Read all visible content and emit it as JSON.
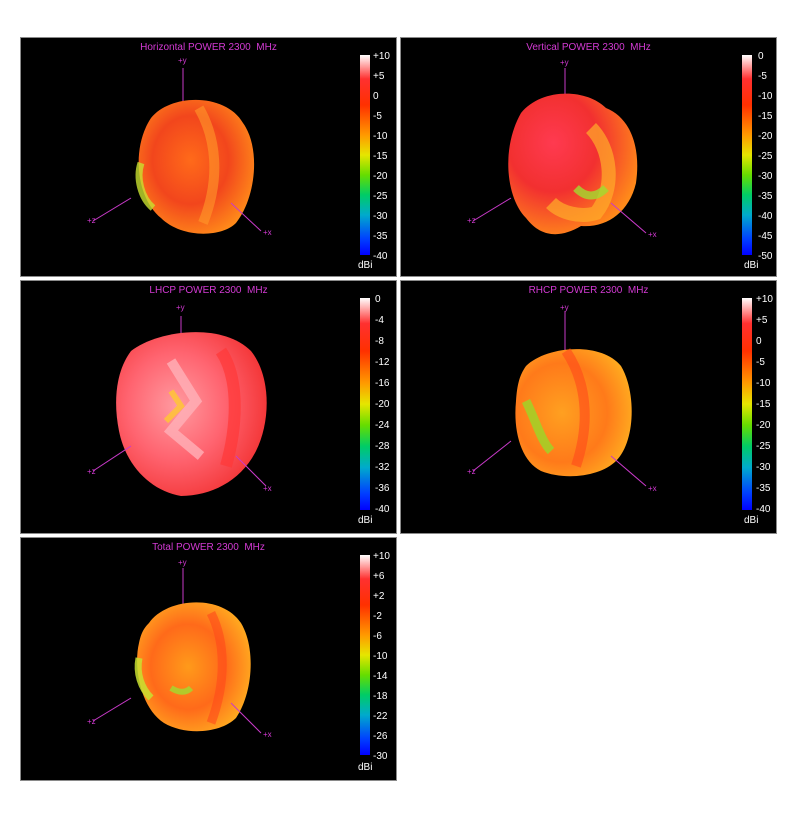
{
  "panels": [
    {
      "title": "Horizontal POWER 2300  MHz",
      "axes": {
        "y": "+y",
        "z": "+z",
        "x": "+x"
      },
      "unit": "dBi",
      "ticks": [
        "+10",
        "+5",
        "0",
        "-5",
        "-10",
        "-15",
        "-20",
        "-25",
        "-30",
        "-35",
        "-40"
      ]
    },
    {
      "title": "Vertical POWER 2300  MHz",
      "axes": {
        "y": "+y",
        "z": "+z",
        "x": "+x"
      },
      "unit": "dBi",
      "ticks": [
        "0",
        "-5",
        "-10",
        "-15",
        "-20",
        "-25",
        "-30",
        "-35",
        "-40",
        "-45",
        "-50"
      ]
    },
    {
      "title": "LHCP POWER 2300  MHz",
      "axes": {
        "y": "+y",
        "z": "+z",
        "x": "+x"
      },
      "unit": "dBi",
      "ticks": [
        "0",
        "-4",
        "-8",
        "-12",
        "-16",
        "-20",
        "-24",
        "-28",
        "-32",
        "-36",
        "-40"
      ]
    },
    {
      "title": "RHCP POWER 2300  MHz",
      "axes": {
        "y": "+y",
        "z": "+z",
        "x": "+x"
      },
      "unit": "dBi",
      "ticks": [
        "+10",
        "+5",
        "0",
        "-5",
        "-10",
        "-15",
        "-20",
        "-25",
        "-30",
        "-35",
        "-40"
      ]
    },
    {
      "title": "Total POWER 2300  MHz",
      "axes": {
        "y": "+y",
        "z": "+z",
        "x": "+x"
      },
      "unit": "dBi",
      "ticks": [
        "+10",
        "+6",
        "+2",
        "-2",
        "-6",
        "-10",
        "-14",
        "-18",
        "-22",
        "-26",
        "-30"
      ]
    }
  ]
}
